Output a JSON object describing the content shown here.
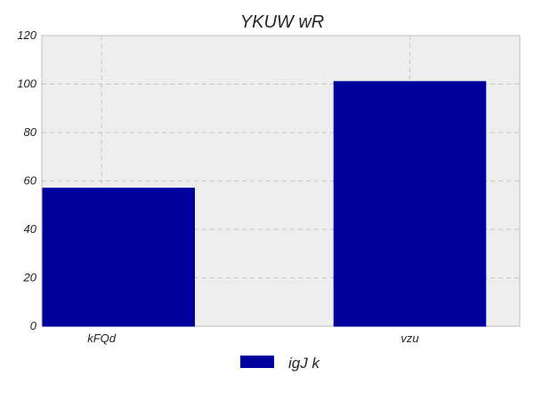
{
  "chart_data": {
    "type": "bar",
    "title": "YKUW   wR",
    "xlabel": "",
    "ylabel": "",
    "categories": [
      "kFQd",
      "vzu"
    ],
    "series": [
      {
        "name": "igJ k",
        "values": [
          57,
          101
        ],
        "color": "#00009c"
      }
    ],
    "ylim": [
      0,
      120
    ],
    "yticks": [
      0,
      20,
      40,
      60,
      80,
      100,
      120
    ],
    "grid": true,
    "legend": "bottom-center",
    "background": "#eeeeee"
  }
}
